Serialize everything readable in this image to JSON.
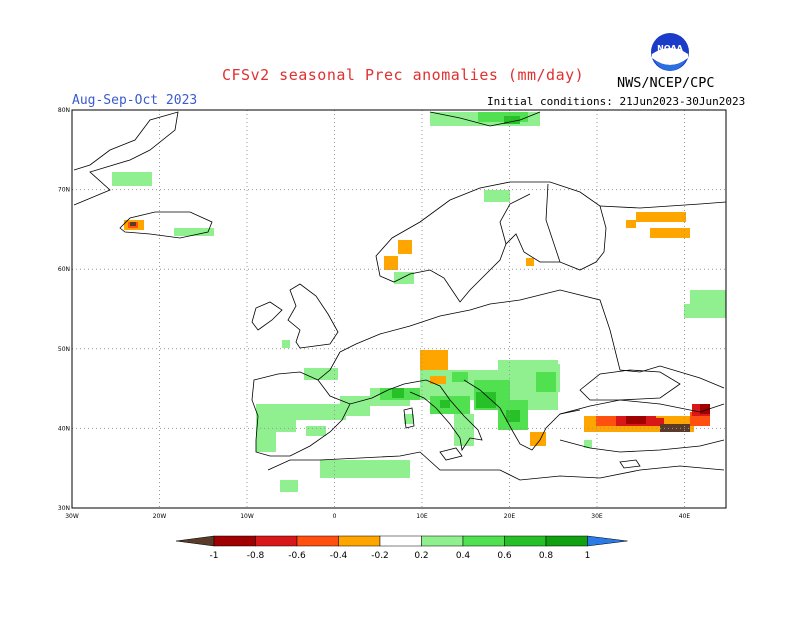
{
  "header": {
    "title": "CFSv2 seasonal Prec anomalies (mm/day)",
    "agency": "NWS/NCEP/CPC",
    "period": "Aug-Sep-Oct 2023",
    "initial_conditions": "Initial conditions: 21Jun2023-30Jun2023"
  },
  "logo": {
    "text": "NOAA",
    "icon": "noaa-logo-icon"
  },
  "map": {
    "lat_labels": [
      "80N",
      "70N",
      "60N",
      "50N",
      "40N",
      "30N"
    ],
    "lon_labels": [
      "30W",
      "20W",
      "10W",
      "0",
      "10E",
      "20E",
      "30E",
      "40E"
    ],
    "gridlines": "dotted"
  },
  "colorbar": {
    "labels": [
      "-1",
      "-0.8",
      "-0.6",
      "-0.4",
      "-0.2",
      "0.2",
      "0.4",
      "0.6",
      "0.8",
      "1"
    ],
    "colors": {
      "below_-1": "#5a3a28",
      "-1_-0.8": "#a00000",
      "-0.8_-0.6": "#d81818",
      "-0.6_-0.4": "#ff5010",
      "-0.4_-0.2": "#ffa500",
      "-0.2_0.2": "#ffffff",
      "0.2_0.4": "#90f090",
      "0.4_0.6": "#50e050",
      "0.6_0.8": "#28c028",
      "0.8_1": "#10a010",
      "above_1": "#2a7ae8"
    }
  }
}
